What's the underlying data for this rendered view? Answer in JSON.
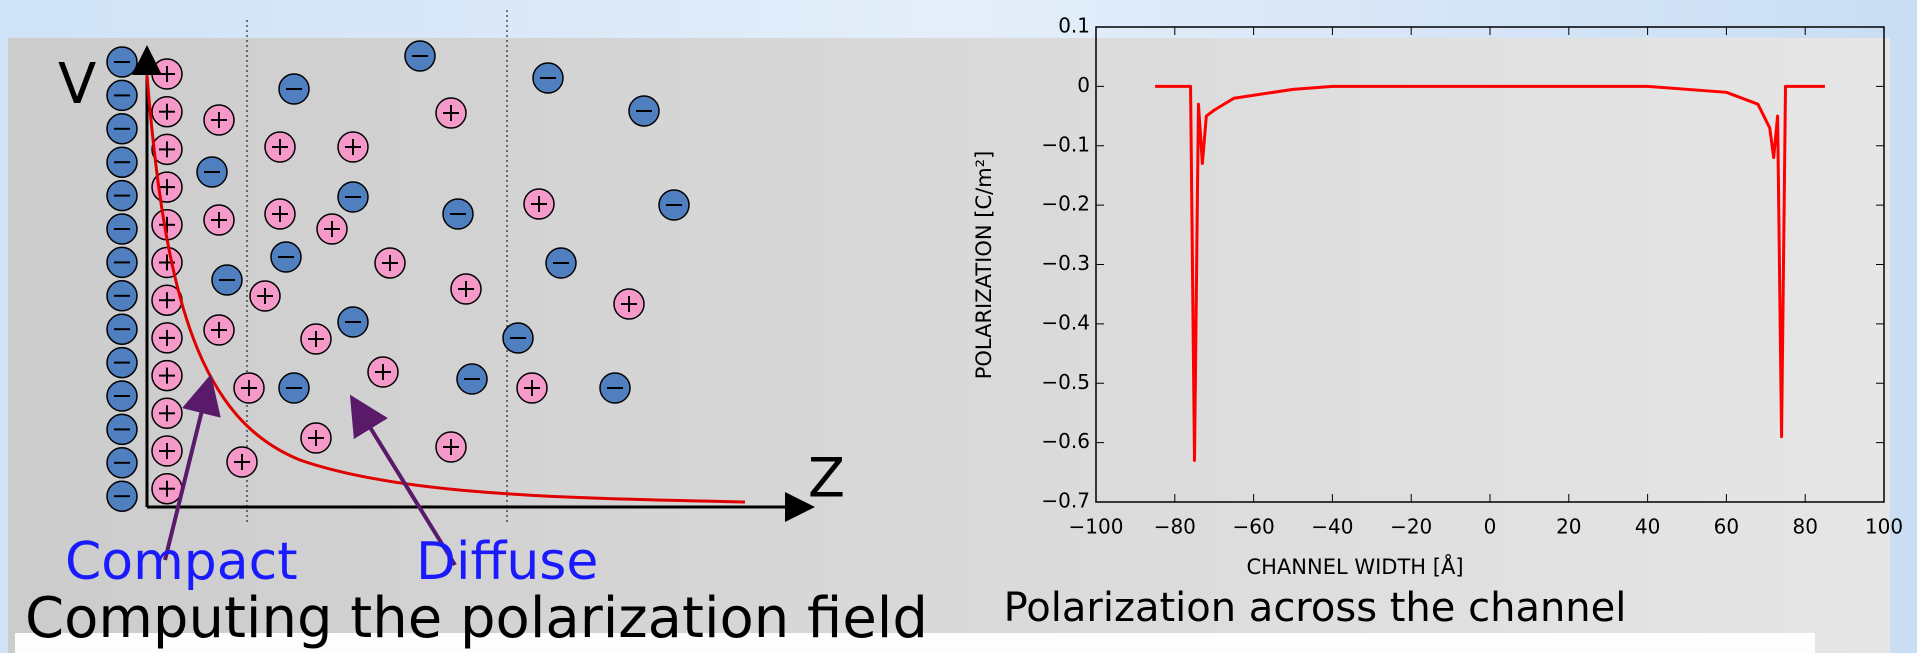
{
  "slide_title": "Computing the polarization field",
  "diagram": {
    "v_label": "V",
    "z_label": "Z",
    "compact_label": "Compact",
    "diffuse_label": "Diffuse"
  },
  "chart_data": {
    "type": "line",
    "title": "Polarization across the channel",
    "x_label": "CHANNEL WIDTH [Å]",
    "y_label": "POLARIZATION [C/m²]",
    "x": [
      -85,
      -76,
      -75,
      -74,
      -73,
      -72,
      -70,
      -65,
      -50,
      -40,
      0,
      40,
      60,
      68,
      71,
      72,
      73,
      74,
      75,
      85
    ],
    "values": [
      0,
      0,
      -0.63,
      -0.03,
      -0.13,
      -0.05,
      -0.04,
      -0.02,
      -0.005,
      0,
      0,
      0,
      -0.01,
      -0.03,
      -0.07,
      -0.12,
      -0.05,
      -0.59,
      0,
      0
    ],
    "color": "#ff0000",
    "xlim": [
      -100,
      100
    ],
    "xticks": [
      {
        "value": -100,
        "label": "−100"
      },
      {
        "value": -80,
        "label": "−80"
      },
      {
        "value": -60,
        "label": "−60"
      },
      {
        "value": -40,
        "label": "−40"
      },
      {
        "value": -20,
        "label": "−20"
      },
      0,
      20,
      40,
      60,
      80,
      100
    ],
    "ylim": [
      -0.7,
      0.1
    ],
    "yticks": [
      0.1,
      0,
      {
        "value": -0.1,
        "label": "−0.1"
      },
      {
        "value": -0.2,
        "label": "−0.2"
      },
      {
        "value": -0.3,
        "label": "−0.3"
      },
      {
        "value": -0.4,
        "label": "−0.4"
      },
      {
        "value": -0.5,
        "label": "−0.5"
      },
      {
        "value": -0.6,
        "label": "−0.6"
      },
      {
        "value": -0.7,
        "label": "−0.7"
      }
    ]
  }
}
